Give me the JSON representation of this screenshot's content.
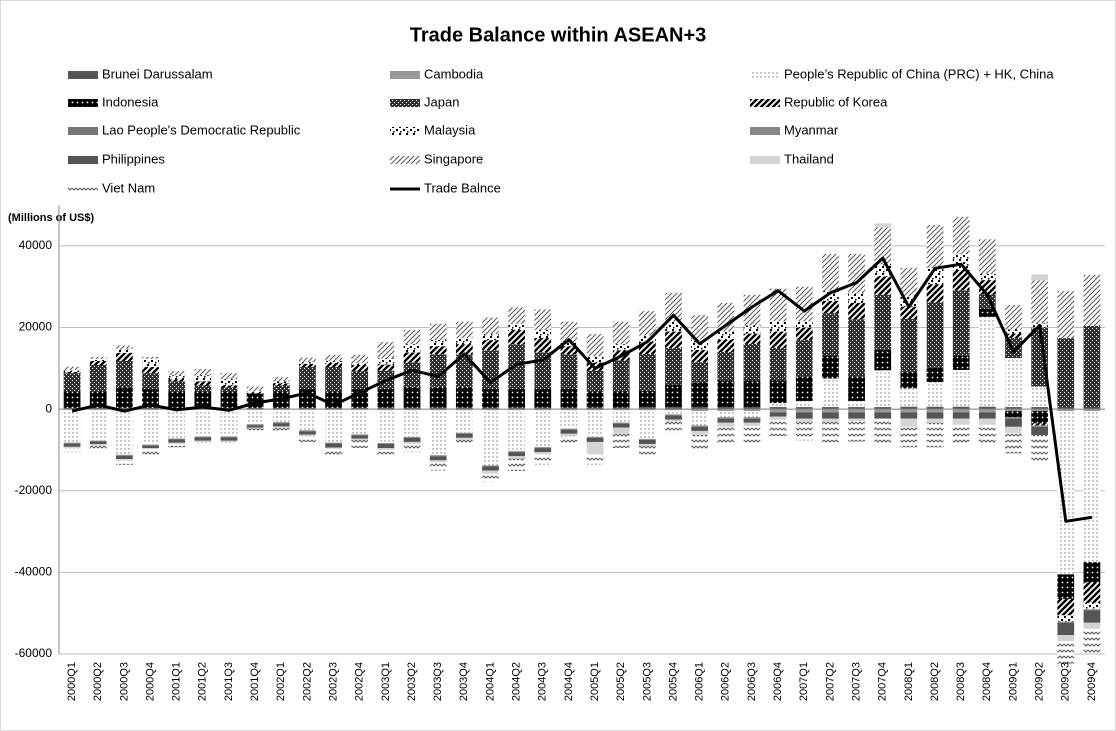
{
  "chart_data": {
    "type": "bar",
    "stacked": true,
    "title": "Trade Balance within ASEAN+3",
    "ylabel": "(Millions of US$)",
    "ylim": [
      -60000,
      50000
    ],
    "yticks": [
      -60000,
      -40000,
      -20000,
      0,
      20000,
      40000
    ],
    "grid": true,
    "categories": [
      "2000Q1",
      "2000Q2",
      "2000Q3",
      "2000Q4",
      "2001Q1",
      "2001Q2",
      "2001Q3",
      "2001Q4",
      "2002Q1",
      "2002Q2",
      "2002Q3",
      "2002Q4",
      "2003Q1",
      "2003Q2",
      "2003Q3",
      "2003Q4",
      "2004Q1",
      "2004Q2",
      "2004Q3",
      "2004Q4",
      "2005Q1",
      "2005Q2",
      "2005Q3",
      "2005Q4",
      "2006Q1",
      "2006Q2",
      "2006Q3",
      "2006Q4",
      "2007Q1",
      "2007Q2",
      "2007Q3",
      "2007Q4",
      "2008Q1",
      "2008Q2",
      "2008Q3",
      "2008Q4",
      "2009Q1",
      "2009Q2",
      "2009Q3",
      "2009Q4"
    ],
    "series": [
      {
        "name": "Brunei Darussalam",
        "color": "#555555",
        "pattern": "solid",
        "values": [
          300,
          300,
          300,
          300,
          300,
          300,
          300,
          300,
          300,
          300,
          300,
          300,
          400,
          400,
          400,
          400,
          400,
          400,
          400,
          400,
          400,
          400,
          500,
          500,
          500,
          500,
          500,
          500,
          500,
          500,
          500,
          500,
          600,
          600,
          600,
          600,
          500,
          500,
          400,
          400
        ]
      },
      {
        "name": "Cambodia",
        "color": "#999999",
        "pattern": "solid",
        "values": [
          -200,
          -200,
          -200,
          -200,
          -200,
          -200,
          -200,
          -200,
          -200,
          -200,
          -200,
          -200,
          -300,
          -300,
          -300,
          -300,
          -300,
          -300,
          -300,
          -300,
          -300,
          -300,
          -300,
          -300,
          -500,
          -500,
          -500,
          -500,
          -500,
          -500,
          -500,
          -500,
          -500,
          -500,
          -500,
          -500,
          -500,
          -500,
          -500,
          -500
        ]
      },
      {
        "name": "People’s Republic of China (PRC) + HK, China",
        "color": "#777777",
        "pattern": "dots",
        "values": [
          -8000,
          -7500,
          -11000,
          -8500,
          -7000,
          -6500,
          -6500,
          -3500,
          -3000,
          -5000,
          -8000,
          -6000,
          -8000,
          -6500,
          -11000,
          -5500,
          -13500,
          -10000,
          -9000,
          -4500,
          -6500,
          -3000,
          -7000,
          -1000,
          -3500,
          -1500,
          -1500,
          1000,
          1500,
          7000,
          1500,
          9000,
          4500,
          6000,
          9000,
          22000,
          12000,
          5000,
          -40000,
          -37000
        ]
      },
      {
        "name": "Indonesia",
        "color": "#000000",
        "pattern": "bigdots",
        "values": [
          4000,
          4000,
          5000,
          4500,
          4000,
          4000,
          4000,
          3500,
          4000,
          4500,
          4000,
          4500,
          4500,
          5000,
          5000,
          5000,
          4500,
          4500,
          4500,
          4500,
          4000,
          4000,
          4000,
          5500,
          6000,
          6500,
          6500,
          5500,
          6000,
          5500,
          6000,
          5000,
          4000,
          3500,
          3500,
          2000,
          -1500,
          -3000,
          -6000,
          -5000
        ]
      },
      {
        "name": "Japan",
        "color": "#333333",
        "pattern": "crosshatch",
        "values": [
          4500,
          6500,
          6500,
          4000,
          2500,
          1500,
          1000,
          0,
          1500,
          5500,
          6000,
          4500,
          4500,
          6000,
          8000,
          8000,
          9500,
          11000,
          9000,
          8500,
          5000,
          7500,
          9000,
          9000,
          5000,
          7000,
          9000,
          8000,
          9000,
          10500,
          14000,
          13500,
          13000,
          16000,
          16000,
          3500,
          5000,
          14500,
          17000,
          20000
        ]
      },
      {
        "name": "Republic of Korea",
        "color": "#000000",
        "pattern": "stripes",
        "values": [
          300,
          1000,
          2000,
          1500,
          500,
          1000,
          500,
          200,
          500,
          800,
          1000,
          1500,
          1500,
          2500,
          2000,
          2500,
          2500,
          3500,
          3500,
          2000,
          2000,
          2500,
          3000,
          4000,
          3000,
          3000,
          2500,
          4000,
          3000,
          3000,
          4000,
          4500,
          3000,
          4500,
          5000,
          3500,
          1000,
          -500,
          -4000,
          -5000
        ]
      },
      {
        "name": "Lao People's Democratic Republic",
        "color": "#777777",
        "pattern": "solid",
        "values": [
          -50,
          -50,
          -50,
          -50,
          -50,
          -50,
          -50,
          -50,
          -50,
          -50,
          -50,
          -50,
          -50,
          -50,
          -50,
          -50,
          -50,
          -50,
          -50,
          -50,
          -50,
          -50,
          -50,
          -50,
          -50,
          -50,
          -50,
          -50,
          -50,
          -50,
          -50,
          -50,
          -50,
          -50,
          -50,
          -50,
          -50,
          -50,
          -50,
          -50
        ]
      },
      {
        "name": "Malaysia",
        "color": "#000000",
        "pattern": "confetti",
        "values": [
          500,
          500,
          1000,
          2000,
          1000,
          1500,
          1500,
          500,
          500,
          500,
          500,
          500,
          1500,
          2000,
          1500,
          1500,
          1500,
          1500,
          2000,
          1000,
          1500,
          1500,
          1500,
          2500,
          2500,
          2000,
          2000,
          2500,
          1500,
          2500,
          2500,
          3000,
          2500,
          4000,
          4000,
          1500,
          1000,
          1000,
          -1500,
          -1500
        ]
      },
      {
        "name": "Myanmar",
        "color": "#888888",
        "pattern": "solid",
        "values": [
          -200,
          -200,
          -200,
          -200,
          -200,
          -200,
          -200,
          -200,
          -200,
          -200,
          -200,
          -200,
          -200,
          -200,
          -200,
          -200,
          -200,
          -200,
          -200,
          -200,
          -200,
          -200,
          -200,
          -200,
          -300,
          -300,
          -300,
          -300,
          -300,
          -300,
          -300,
          -300,
          -300,
          -300,
          -300,
          -300,
          -300,
          -300,
          -300,
          -300
        ]
      },
      {
        "name": "Philippines",
        "color": "#555555",
        "pattern": "solid",
        "values": [
          -800,
          -600,
          -800,
          -600,
          -800,
          -800,
          -800,
          -600,
          -800,
          -800,
          -1000,
          -800,
          -1000,
          -1000,
          -1000,
          -1000,
          -1000,
          -1000,
          -1000,
          -1000,
          -1000,
          -1000,
          -1000,
          -1000,
          -1000,
          -1000,
          -1000,
          -1000,
          -1500,
          -1500,
          -1500,
          -1500,
          -1500,
          -1500,
          -1500,
          -1500,
          -2000,
          -2000,
          -3000,
          -3000
        ]
      },
      {
        "name": "Singapore",
        "color": "#555555",
        "pattern": "hatch",
        "values": [
          800,
          500,
          800,
          500,
          1000,
          1500,
          1500,
          1000,
          1000,
          1000,
          1500,
          2000,
          4000,
          3500,
          4000,
          4000,
          4000,
          4000,
          5000,
          5000,
          5500,
          5500,
          6000,
          7000,
          6000,
          7000,
          7500,
          8000,
          8500,
          9000,
          9500,
          9000,
          7000,
          10500,
          9000,
          8500,
          6000,
          10500,
          11500,
          12500
        ]
      },
      {
        "name": "Thailand",
        "color": "#d4d4d4",
        "pattern": "solid",
        "values": [
          -300,
          -400,
          -400,
          -300,
          -300,
          -300,
          -300,
          -200,
          -300,
          -300,
          -300,
          -300,
          -500,
          -500,
          -500,
          -500,
          -800,
          -600,
          -500,
          -500,
          -3000,
          -1500,
          -500,
          -500,
          -1000,
          -1000,
          -800,
          -800,
          -800,
          -800,
          -600,
          1000,
          -2000,
          -1000,
          -1500,
          -1500,
          -1500,
          1500,
          -1500,
          -1500
        ]
      },
      {
        "name": "Viet Nam",
        "color": "#555555",
        "pattern": "wave",
        "values": [
          -1000,
          -1500,
          -1000,
          -1500,
          -800,
          -800,
          -800,
          -800,
          -1000,
          -1500,
          -2000,
          -2000,
          -1500,
          -2000,
          -2000,
          -1000,
          -2000,
          -3000,
          -2500,
          -2000,
          -2500,
          -3500,
          -2500,
          -3000,
          -3500,
          -4500,
          -4000,
          -4000,
          -4500,
          -5000,
          -5000,
          -6000,
          -5000,
          -6000,
          -5000,
          -5000,
          -5000,
          -7000,
          -5500,
          -6000
        ]
      }
    ],
    "line": {
      "name": "Trade Balnce",
      "color": "#000000",
      "values": [
        -500,
        1000,
        -500,
        1000,
        -200,
        500,
        -300,
        1500,
        2500,
        4000,
        1000,
        4000,
        7000,
        9500,
        8000,
        13500,
        6500,
        11000,
        12000,
        17000,
        10000,
        13000,
        16500,
        23000,
        16000,
        20500,
        25000,
        29000,
        24000,
        28500,
        31000,
        37000,
        25000,
        34500,
        35500,
        28000,
        14000,
        20500,
        -27500,
        -26500
      ]
    }
  }
}
